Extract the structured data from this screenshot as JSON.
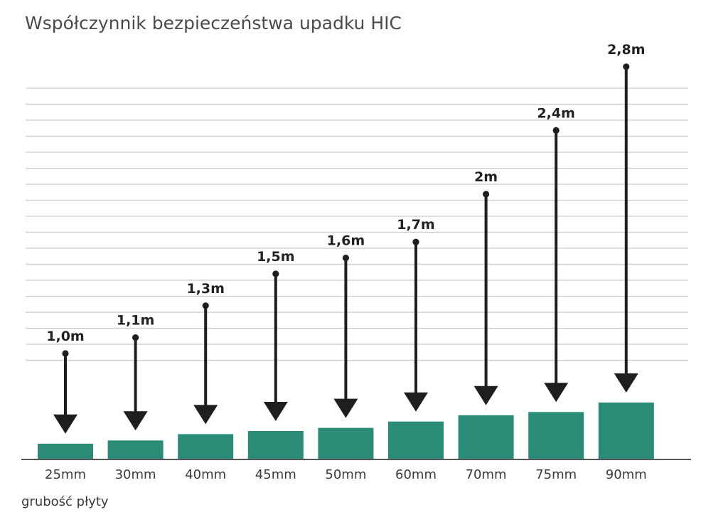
{
  "chart_data": {
    "type": "bar",
    "title": "Współczynnik bezpieczeństwa upadku HIC",
    "xlabel": "grubość płyty",
    "ylabel": "",
    "categories": [
      "25mm",
      "30mm",
      "40mm",
      "45mm",
      "50mm",
      "60mm",
      "70mm",
      "75mm",
      "90mm"
    ],
    "values": [
      25,
      30,
      40,
      45,
      50,
      60,
      70,
      75,
      90
    ],
    "annotations": [
      "1,0m",
      "1,1m",
      "1,3m",
      "1,5m",
      "1,6m",
      "1,7m",
      "2m",
      "2,4m",
      "2,8m"
    ],
    "annotation_values": [
      1.0,
      1.1,
      1.3,
      1.5,
      1.6,
      1.7,
      2.0,
      2.4,
      2.8
    ],
    "grid": true,
    "legend": "none"
  },
  "colors": {
    "bar": "#2a8b77",
    "arrow": "#1e1e1e",
    "grid": "#c9c9c9",
    "axis": "#555555"
  }
}
